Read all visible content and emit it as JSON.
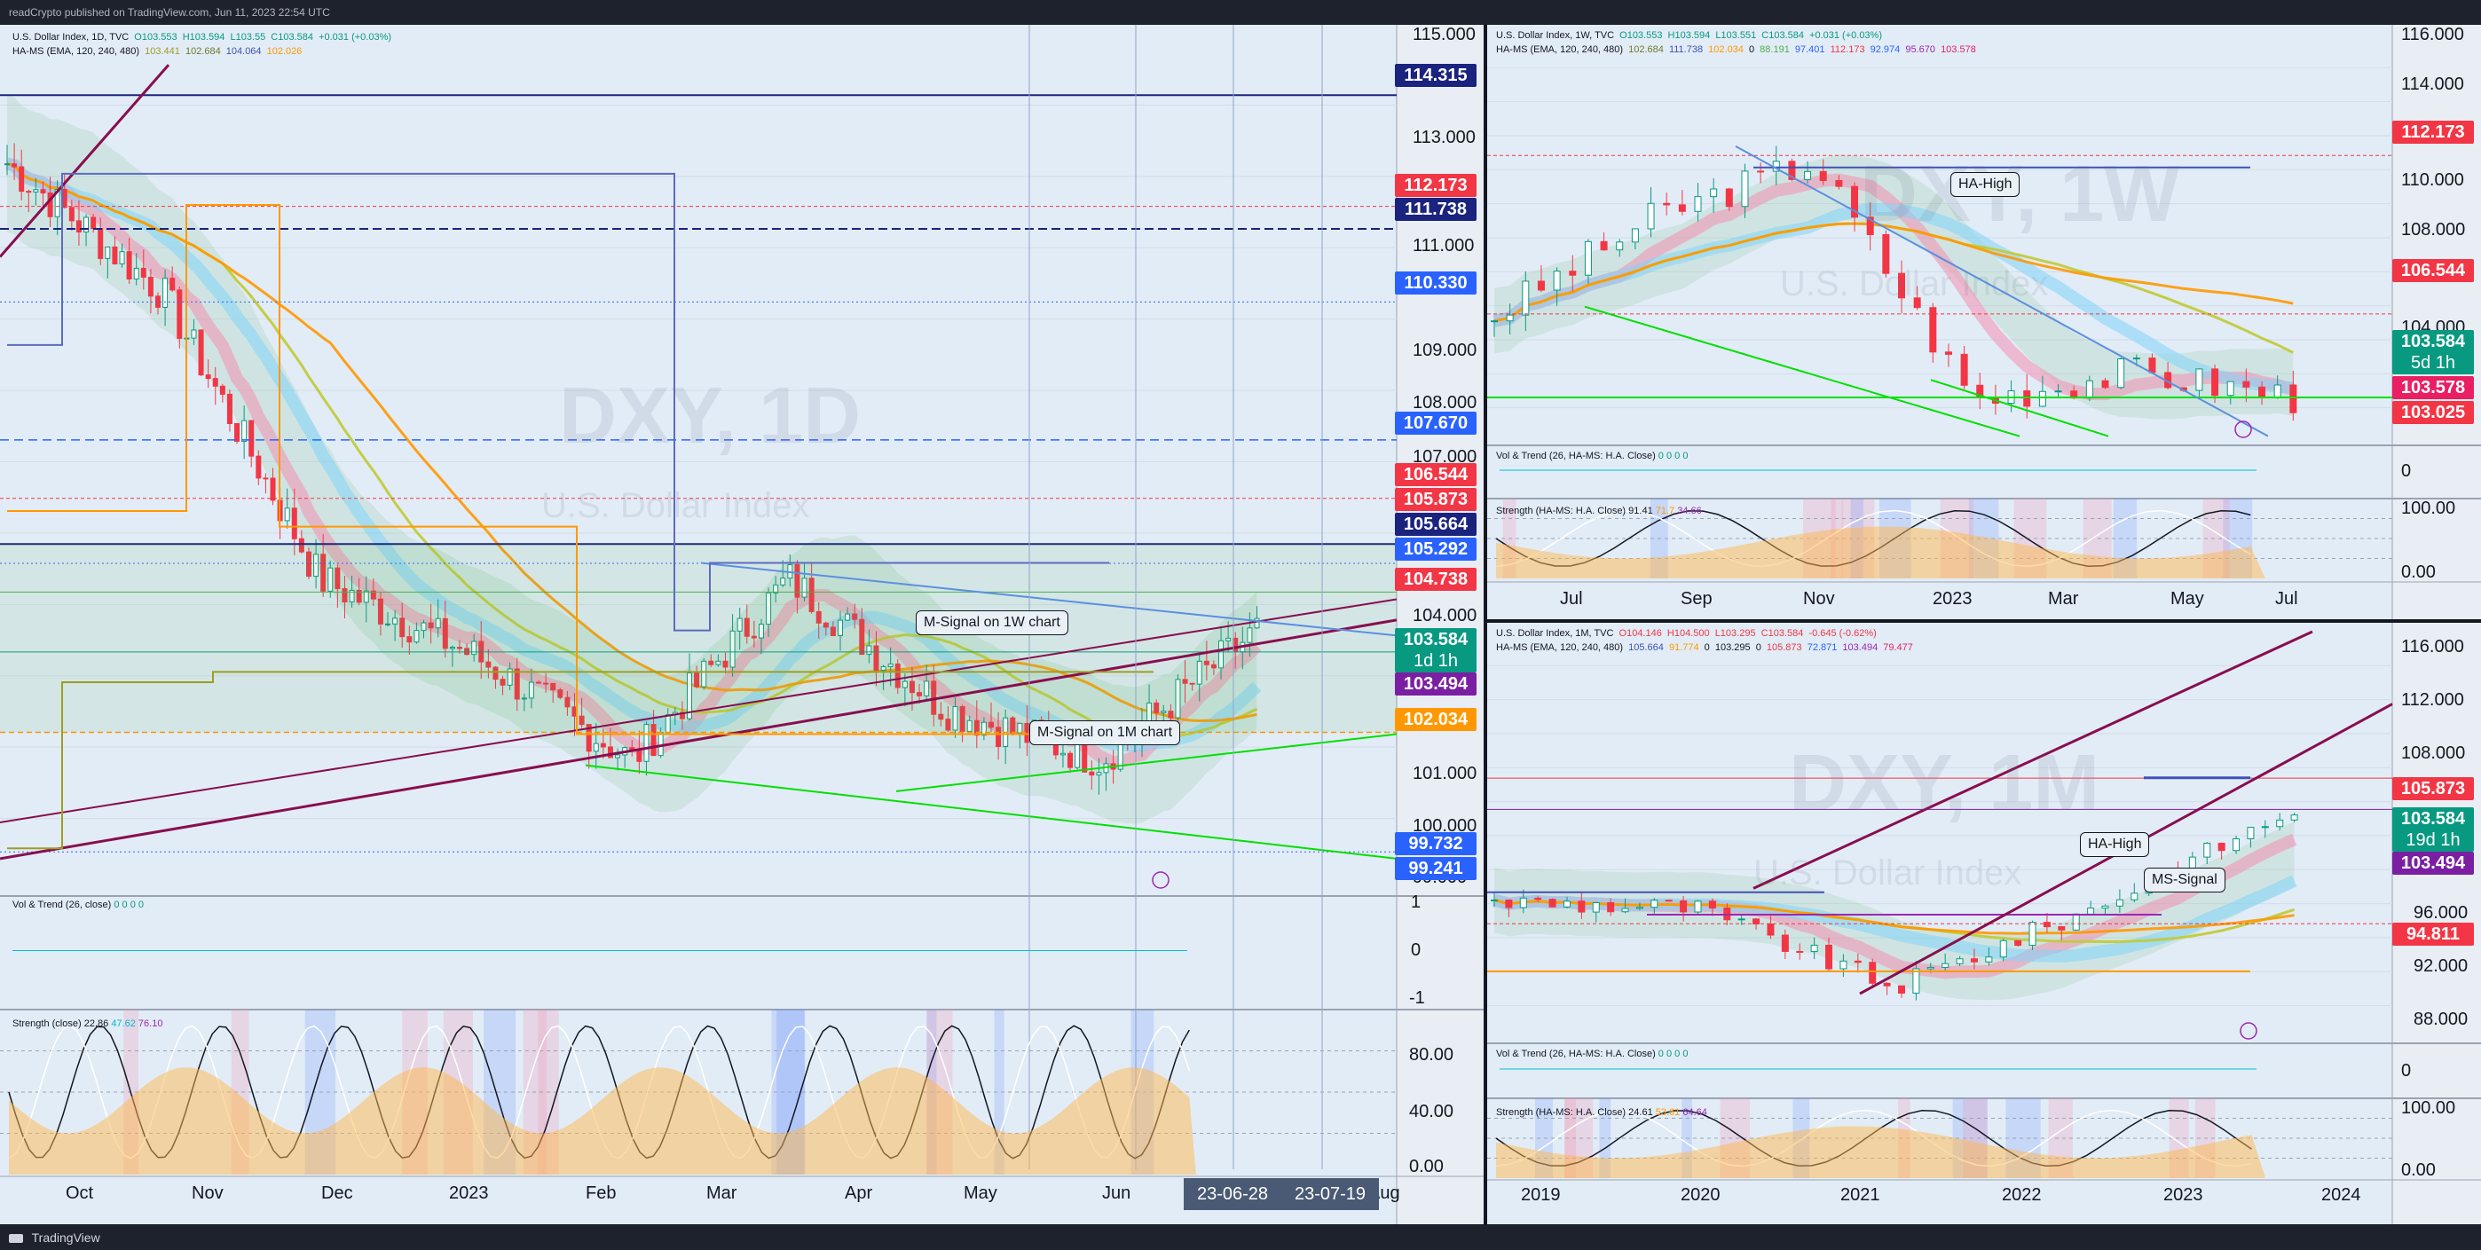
{
  "header": {
    "publisher": "readCrypto published on TradingView.com, Jun 11, 2023 22:54 UTC"
  },
  "footer": {
    "brand": "TradingView"
  },
  "panels": {
    "daily": {
      "legend1": "U.S. Dollar Index, 1D, TVC",
      "legend1_vals": [
        "O103.553",
        "H103.594",
        "L103.55",
        "C103.584",
        "+0.031 (+0.03%)"
      ],
      "legend2": "HA-MS (EMA, 120, 240, 480)",
      "legend2_vals": [
        "103.441",
        "102.684",
        "104.064",
        "102.026"
      ],
      "watermark": "DXY, 1D",
      "watermark_sub": "U.S. Dollar Index",
      "callouts": [
        "M-Signal on 1W chart",
        "M-Signal on 1M chart"
      ],
      "y_ticks": [
        "115.000",
        "113.000",
        "111.000",
        "109.000",
        "108.000",
        "107.000",
        "104.000",
        "101.000",
        "100.000",
        "99.000"
      ],
      "price_labels": [
        {
          "text": "114.315",
          "color": "#1a237e"
        },
        {
          "text": "112.173",
          "color": "#f23645"
        },
        {
          "text": "111.738",
          "color": "#1a237e"
        },
        {
          "text": "110.330",
          "color": "#2962ff"
        },
        {
          "text": "107.670",
          "color": "#2962ff"
        },
        {
          "text": "106.544",
          "color": "#f23645"
        },
        {
          "text": "105.873",
          "color": "#f23645"
        },
        {
          "text": "105.664",
          "color": "#1a237e"
        },
        {
          "text": "105.292",
          "color": "#2962ff"
        },
        {
          "text": "104.738",
          "color": "#f23645"
        },
        {
          "text": "103.584",
          "color": "#089981"
        },
        {
          "text": "1d 1h",
          "color": "#089981"
        },
        {
          "text": "103.494",
          "color": "#7b1fa2"
        },
        {
          "text": "102.034",
          "color": "#ff9800"
        },
        {
          "text": "99.732",
          "color": "#2962ff"
        },
        {
          "text": "99.241",
          "color": "#2962ff"
        }
      ],
      "x_ticks": [
        "Oct",
        "Nov",
        "Dec",
        "2023",
        "Feb",
        "Mar",
        "Apr",
        "May",
        "Jun",
        "Aug"
      ],
      "date_boxes": [
        "23-06-28",
        "23-07-19"
      ],
      "vol_label": "Vol & Trend (26, close)",
      "vol_vals": "0 0 0 0",
      "vol_ticks": [
        "1",
        "0",
        "-1"
      ],
      "strength_label": "Strength (close)",
      "strength_vals": [
        "22.86",
        "47.62",
        "76.10"
      ],
      "strength_ticks": [
        "80.00",
        "40.00",
        "0.00"
      ]
    },
    "weekly": {
      "legend1": "U.S. Dollar Index, 1W, TVC",
      "legend1_vals": [
        "O103.553",
        "H103.594",
        "L103.551",
        "C103.584",
        "+0.031 (+0.03%)"
      ],
      "legend2": "HA-MS (EMA, 120, 240, 480)",
      "legend2_vals": [
        "102.684",
        "111.738",
        "102.034",
        "0",
        "88.191",
        "97.401",
        "112.173",
        "92.974",
        "95.670",
        "103.578"
      ],
      "watermark": "DXY, 1W",
      "watermark_sub": "U.S. Dollar Index",
      "callouts": [
        "HA-High"
      ],
      "y_ticks": [
        "116.000",
        "114.000",
        "110.000",
        "108.000",
        "104.000"
      ],
      "price_labels": [
        {
          "text": "112.173",
          "color": "#f23645"
        },
        {
          "text": "106.544",
          "color": "#f23645"
        },
        {
          "text": "103.584",
          "color": "#089981"
        },
        {
          "text": "5d 1h",
          "color": "#089981"
        },
        {
          "text": "103.578",
          "color": "#e91e63"
        },
        {
          "text": "103.025",
          "color": "#f23645"
        }
      ],
      "x_ticks": [
        "Jul",
        "Sep",
        "Nov",
        "2023",
        "Mar",
        "May",
        "Jul"
      ],
      "vol_label": "Vol & Trend (26, HA-MS: H.A. Close)",
      "vol_vals": "0 0 0 0",
      "vol_ticks": [
        "0"
      ],
      "strength_label": "Strength (HA-MS: H.A. Close)",
      "strength_vals": [
        "91.41",
        "71.7",
        "34.66"
      ],
      "strength_ticks": [
        "100.00",
        "0.00"
      ]
    },
    "monthly": {
      "legend1": "U.S. Dollar Index, 1M, TVC",
      "legend1_vals": [
        "O104.146",
        "H104.500",
        "L103.295",
        "C103.584",
        "-0.645 (-0.62%)"
      ],
      "legend2": "HA-MS (EMA, 120, 240, 480)",
      "legend2_vals": [
        "105.664",
        "91.774",
        "0",
        "103.295",
        "0",
        "105.873",
        "72.871",
        "103.494",
        "79.477"
      ],
      "watermark": "DXY, 1M",
      "watermark_sub": "U.S. Dollar Index",
      "callouts": [
        "HA-High",
        "MS-Signal"
      ],
      "y_ticks": [
        "116.000",
        "112.000",
        "108.000",
        "96.000",
        "92.000",
        "88.000"
      ],
      "price_labels": [
        {
          "text": "105.873",
          "color": "#f23645"
        },
        {
          "text": "103.584",
          "color": "#089981"
        },
        {
          "text": "19d 1h",
          "color": "#089981"
        },
        {
          "text": "103.494",
          "color": "#7b1fa2"
        },
        {
          "text": "94.811",
          "color": "#f23645"
        }
      ],
      "x_ticks": [
        "2019",
        "2020",
        "2021",
        "2022",
        "2023",
        "2024"
      ],
      "vol_label": "Vol & Trend (26, HA-MS: H.A. Close)",
      "vol_vals": "0 0 0 0",
      "vol_ticks": [
        "0"
      ],
      "strength_label": "Strength (HA-MS: H.A. Close)",
      "strength_vals": [
        "24.61",
        "53.61",
        "64.64"
      ],
      "strength_ticks": [
        "100.00",
        "0.00"
      ]
    }
  },
  "chart_data": [
    {
      "type": "line",
      "title": "U.S. Dollar Index, 1D, TVC",
      "ylim": [
        99,
        115.5
      ],
      "x": [
        "Oct",
        "Nov",
        "Dec",
        "2023",
        "Feb",
        "Mar",
        "Apr",
        "May",
        "Jun"
      ],
      "series": [
        {
          "values": [
            113.0,
            110.5,
            105.0,
            103.5,
            101.5,
            105.0,
            102.5,
            101.5,
            104.0
          ]
        }
      ]
    },
    {
      "type": "line",
      "title": "U.S. Dollar Index, 1W, TVC",
      "ylim": [
        102,
        116.5
      ],
      "x": [
        "Jul",
        "Sep",
        "Nov",
        "2023",
        "Mar",
        "May"
      ],
      "series": [
        {
          "values": [
            106.5,
            110.0,
            112.0,
            103.5,
            104.5,
            103.6
          ]
        }
      ]
    },
    {
      "type": "line",
      "title": "U.S. Dollar Index, 1M, TVC",
      "ylim": [
        86,
        117
      ],
      "x": [
        "2019",
        "2020",
        "2021",
        "2022",
        "2023"
      ],
      "series": [
        {
          "values": [
            96.5,
            96.0,
            90.0,
            96.0,
            103.5
          ]
        }
      ]
    }
  ]
}
